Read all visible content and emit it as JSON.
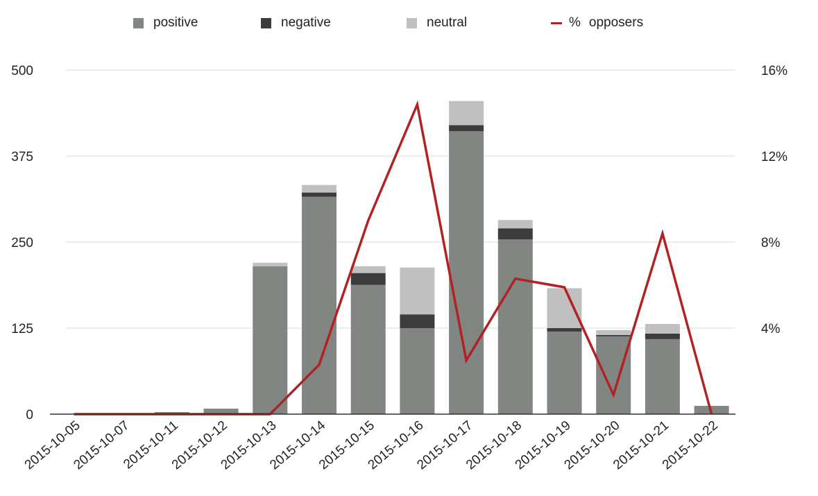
{
  "chart_data": {
    "type": "bar",
    "stacked": true,
    "categories": [
      "2015-10-05",
      "2015-10-07",
      "2015-10-11",
      "2015-10-12",
      "2015-10-13",
      "2015-10-14",
      "2015-10-15",
      "2015-10-16",
      "2015-10-17",
      "2015-10-18",
      "2015-10-19",
      "2015-10-20",
      "2015-10-21",
      "2015-10-22"
    ],
    "series": [
      {
        "name": "positive",
        "color": "#818683",
        "values": [
          0,
          0,
          3,
          8,
          215,
          316,
          188,
          125,
          411,
          254,
          120,
          113,
          109,
          12
        ]
      },
      {
        "name": "negative",
        "color": "#3c3c3c",
        "values": [
          0,
          0,
          0,
          0,
          0,
          6,
          17,
          20,
          9,
          16,
          5,
          2,
          8,
          0
        ]
      },
      {
        "name": "neutral",
        "color": "#c0c0c0",
        "values": [
          0,
          0,
          0,
          0,
          5,
          11,
          10,
          68,
          35,
          12,
          58,
          7,
          14,
          0
        ]
      }
    ],
    "line_series": {
      "name": "opposers",
      "legend_label": "%",
      "color": "#b22222",
      "axis": "right",
      "values": [
        0,
        0,
        0,
        0,
        0,
        2.3,
        9.0,
        14.4,
        2.5,
        6.3,
        5.9,
        0.9,
        8.4,
        0
      ]
    },
    "left_axis": {
      "min": 0,
      "max": 500,
      "ticks": [
        "0",
        "125",
        "250",
        "375",
        "500"
      ]
    },
    "right_axis": {
      "min": 0,
      "max": 16,
      "ticks": [
        "4%",
        "8%",
        "12%",
        "16%"
      ]
    },
    "grid": true,
    "legend_position": "top"
  }
}
